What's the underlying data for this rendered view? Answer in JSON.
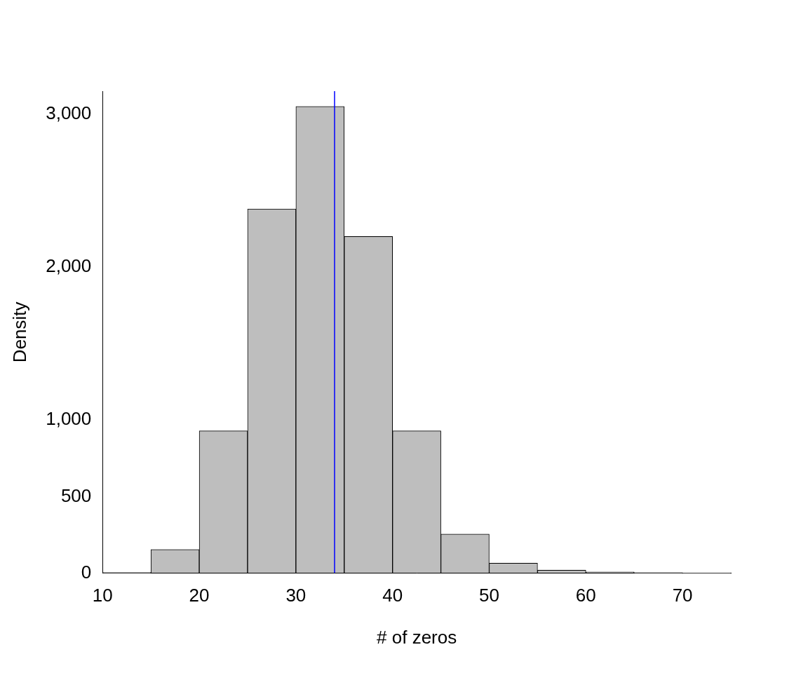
{
  "chart_data": {
    "type": "histogram",
    "x_label": "# of zeros",
    "y_label": "Density",
    "bins": [
      10,
      15,
      20,
      25,
      30,
      35,
      40,
      45,
      50,
      55,
      60,
      65,
      70,
      75
    ],
    "values": [
      5,
      155,
      930,
      2380,
      3050,
      2200,
      930,
      255,
      65,
      20,
      8,
      3,
      1
    ],
    "color": "#bebebe",
    "xlim": [
      10,
      75
    ],
    "xticks": [
      10,
      20,
      30,
      40,
      50,
      60,
      70
    ],
    "ylim": [
      0,
      3150
    ],
    "yticks": [
      0,
      500,
      1000,
      2000,
      3000
    ],
    "grid": false,
    "reference_line": {
      "x": 34,
      "color": "#0000ff"
    }
  }
}
